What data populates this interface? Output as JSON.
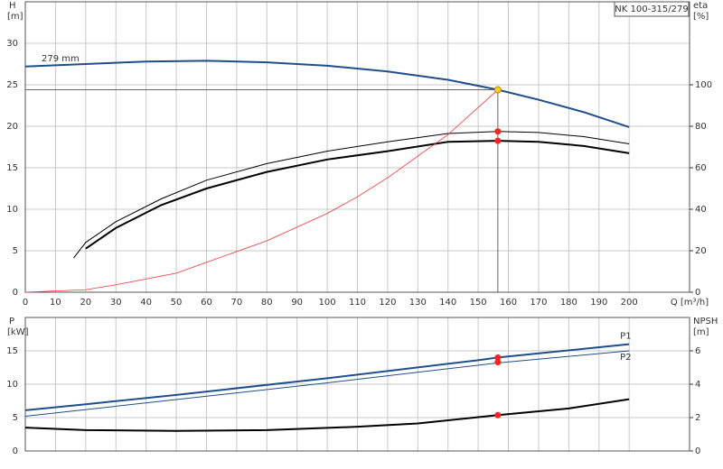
{
  "chart_data": [
    {
      "type": "line",
      "title": "NK 100-315/279",
      "y_label": "H",
      "y_unit": "[m]",
      "y2_label": "eta",
      "y2_unit": "[%]",
      "x_label": "Q [m³/h]",
      "xlim": [
        0,
        220
      ],
      "xticks": [
        0,
        10,
        20,
        30,
        40,
        50,
        60,
        70,
        80,
        90,
        100,
        110,
        120,
        130,
        140,
        150,
        160,
        170,
        180,
        190,
        200
      ],
      "ylim": [
        0,
        35
      ],
      "yticks": [
        0,
        5,
        10,
        15,
        20,
        25,
        30
      ],
      "y2lim": [
        0,
        140
      ],
      "y2ticks": [
        0,
        20,
        40,
        60,
        80,
        100
      ],
      "grid": true,
      "series": [
        {
          "name": "279 mm",
          "label_at": "start",
          "mode": "line",
          "color": "#1f4e8c",
          "width": 2,
          "x": [
            0,
            20,
            40,
            60,
            80,
            100,
            120,
            140,
            156.5,
            170,
            185,
            200
          ],
          "values": [
            27.2,
            27.5,
            27.8,
            27.9,
            27.7,
            27.3,
            26.6,
            25.6,
            24.4,
            23.2,
            21.7,
            19.9
          ]
        },
        {
          "mode": "line",
          "axis": "y2",
          "color": "#000000",
          "width": 1,
          "x": [
            16,
            20,
            30,
            45,
            60,
            80,
            100,
            120,
            140,
            156.5,
            170,
            185,
            200
          ],
          "values": [
            16.5,
            24,
            34,
            45,
            54,
            62,
            68,
            72.5,
            76.5,
            77.5,
            77,
            75,
            71.5
          ]
        },
        {
          "mode": "line",
          "axis": "y2",
          "color": "#000000",
          "width": 2,
          "x": [
            20,
            30,
            45,
            60,
            80,
            100,
            120,
            140,
            156.5,
            170,
            185,
            200
          ],
          "values": [
            21,
            31,
            42,
            50,
            58,
            64,
            68,
            72.5,
            73,
            72.5,
            70.5,
            67
          ]
        },
        {
          "mode": "line",
          "color": "#ff3030",
          "width": 0.8,
          "x": [
            0,
            20,
            30,
            50,
            60,
            80,
            100,
            110,
            120,
            140,
            156.5
          ],
          "values": [
            0,
            0.3,
            0.9,
            2.3,
            3.6,
            6.2,
            9.5,
            11.5,
            13.8,
            19.0,
            24.4
          ]
        },
        {
          "mode": "points",
          "guides": true,
          "color": "#ffd21f",
          "x": [
            156.5
          ],
          "values": [
            24.4
          ]
        },
        {
          "mode": "points",
          "axis": "y2",
          "color": "#ff2020",
          "x": [
            156.5,
            156.5
          ],
          "values": [
            77.5,
            73
          ]
        }
      ]
    },
    {
      "type": "line",
      "y_label": "P",
      "y_unit": "[kW]",
      "y2_label": "NPSH",
      "y2_unit": "[m]",
      "xlim": [
        0,
        220
      ],
      "ylim": [
        0,
        20
      ],
      "yticks": [
        0,
        5,
        10,
        15
      ],
      "y2lim": [
        0,
        8
      ],
      "y2ticks": [
        0,
        2,
        4,
        6
      ],
      "grid": true,
      "series": [
        {
          "name": "P1",
          "label_at": "end",
          "mode": "line",
          "color": "#1f4e8c",
          "width": 2,
          "x": [
            0,
            20,
            50,
            100,
            150,
            156.5,
            200
          ],
          "values": [
            6.1,
            7.0,
            8.4,
            10.9,
            13.6,
            14.0,
            16.0
          ]
        },
        {
          "name": "P2",
          "label_at": "end",
          "mode": "line",
          "color": "#1f4e8c",
          "width": 1,
          "x": [
            0,
            50,
            100,
            156.5,
            200
          ],
          "values": [
            5.2,
            7.7,
            10.2,
            13.2,
            15.0
          ]
        },
        {
          "mode": "line",
          "axis": "y2",
          "color": "#000000",
          "width": 2,
          "x": [
            0,
            20,
            50,
            80,
            110,
            130,
            156.5,
            180,
            200
          ],
          "values": [
            1.4,
            1.25,
            1.2,
            1.25,
            1.45,
            1.65,
            2.15,
            2.55,
            3.1
          ]
        },
        {
          "mode": "points",
          "color": "#ff2020",
          "x": [
            156.5,
            156.5
          ],
          "values": [
            14.0,
            13.3
          ]
        },
        {
          "mode": "points",
          "axis": "y2",
          "color": "#ff2020",
          "x": [
            156.5
          ],
          "values": [
            2.15
          ]
        }
      ]
    }
  ]
}
